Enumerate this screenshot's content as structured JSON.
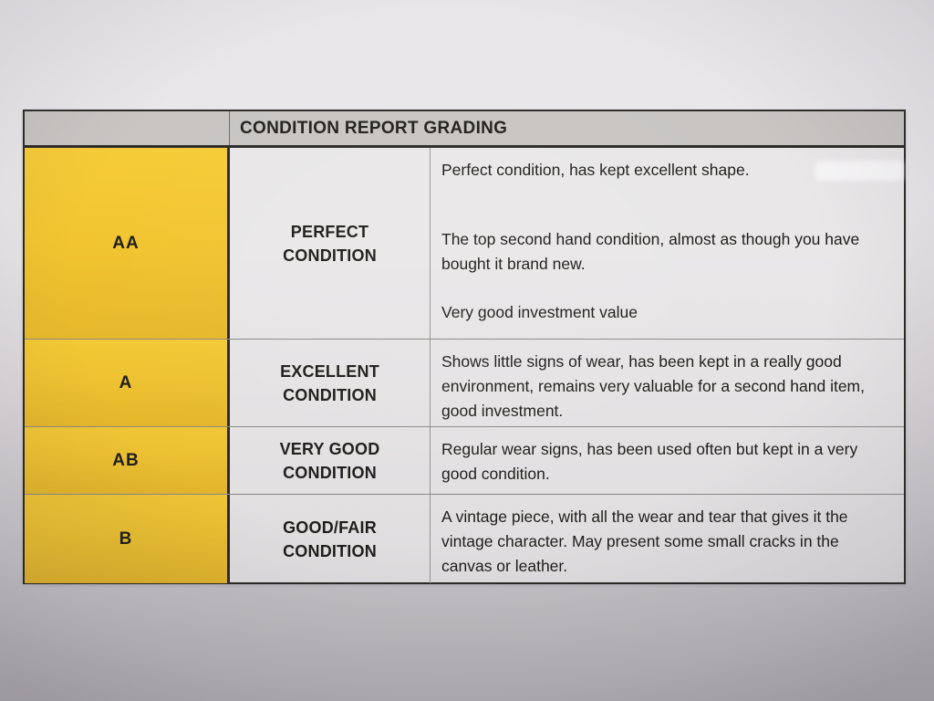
{
  "table": {
    "title": "CONDITION REPORT GRADING",
    "rows": [
      {
        "grade": "AA",
        "condition": "PERFECT\nCONDITION",
        "description": [
          "Perfect condition, has kept excellent shape.",
          "The top second hand condition, almost as though you have bought it brand new.",
          "Very good investment value"
        ]
      },
      {
        "grade": "A",
        "condition": "EXCELLENT\nCONDITION",
        "description": [
          "Shows little signs of wear, has been kept in a really good environment, remains very valuable for a second hand item, good investment."
        ]
      },
      {
        "grade": "AB",
        "condition": "VERY GOOD\nCONDITION",
        "description": [
          "Regular wear signs, has been used often but kept in a very good condition."
        ]
      },
      {
        "grade": "B",
        "condition": "GOOD/FAIR\nCONDITION",
        "description": [
          "A vintage piece, with all the wear and tear that gives it the vintage character. May present some small cracks in the canvas or leather."
        ]
      }
    ]
  },
  "colors": {
    "grade_yellow": "#f2c531",
    "header_bg": "#c7c4c2",
    "cell_bg": "#e9e7e8",
    "paper_top": "#e8e6e9",
    "paper_bottom": "#c2bfc3",
    "border_dark": "#2b2926",
    "divider": "#8f8c89",
    "text": "#1f1d1a"
  }
}
